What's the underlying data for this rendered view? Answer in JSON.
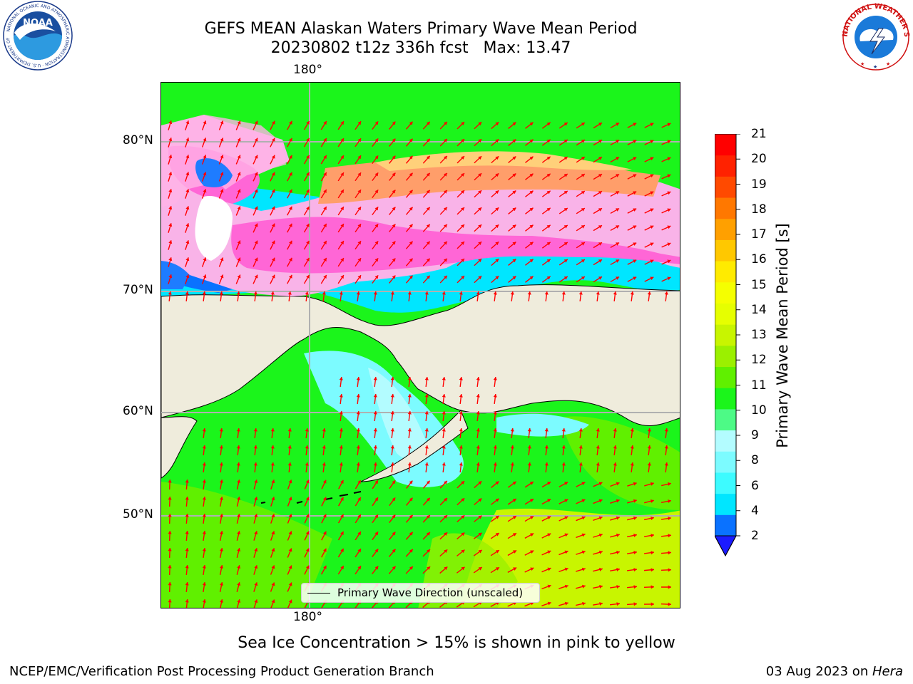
{
  "header": {
    "title_line1": "GEFS MEAN Alaskan Waters Primary Wave Mean Period",
    "title_line2": "20230802 t12z 336h fcst   Max: 13.47"
  },
  "logos": {
    "left": {
      "name": "noaa-logo",
      "text": "NOAA",
      "ring_text": "NATIONAL OCEANIC AND ATMOSPHERIC ADMINISTRATION · U.S. DEPARTMENT OF COMMERCE"
    },
    "right": {
      "name": "nws-logo",
      "ring_text": "NATIONAL WEATHER SERVICE"
    }
  },
  "map": {
    "lon_labels": [
      "180°",
      "180°"
    ],
    "lat_labels": [
      "80°N",
      "70°N",
      "60°N",
      "50°N"
    ],
    "legend_label": "Primary Wave Direction (unscaled)",
    "colors": {
      "land": "#efecdc",
      "coast": "#000000",
      "grid": "#b0b0b0",
      "arrow": "#ff0000",
      "ice_a": "#f9b3e8",
      "ice_b": "#ff66d6",
      "ice_c": "#ff9e6a",
      "ice_d": "#ffd07a"
    }
  },
  "colorbar": {
    "label": "Primary Wave Mean Period [s]",
    "ticks": [
      "21",
      "20",
      "19",
      "18",
      "17",
      "16",
      "15",
      "14",
      "13",
      "12",
      "11",
      "10",
      "9",
      "8",
      "6",
      "4",
      "2"
    ],
    "colors_bottom_to_top": [
      "#0a72ff",
      "#00e6ff",
      "#3dfbff",
      "#7cfbff",
      "#b3fcff",
      "#4dfa86",
      "#1bf51b",
      "#60f000",
      "#9bf000",
      "#c8f500",
      "#e6ff00",
      "#f5ff00",
      "#ffeb00",
      "#ffc800",
      "#ffa000",
      "#ff7800",
      "#ff4a00",
      "#ff2200",
      "#ff0000"
    ],
    "extend_color": "#1b1bff"
  },
  "footer": {
    "ice_note": "Sea Ice Concentration > 15% is shown in pink to yellow",
    "left": "NCEP/EMC/Verification Post Processing Product Generation Branch",
    "right_date": "03 Aug 2023 on ",
    "right_host": "Hera"
  }
}
